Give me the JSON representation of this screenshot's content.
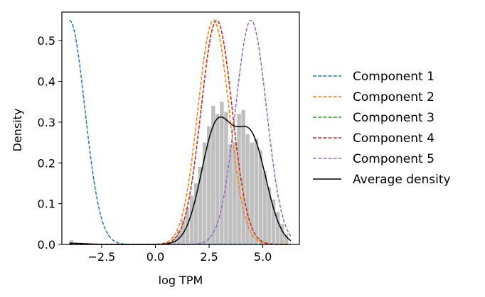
{
  "chart_data": {
    "type": "line",
    "xlabel": "log TPM",
    "ylabel": "Density",
    "xlim": [
      -4.35,
      6.7
    ],
    "ylim": [
      0,
      0.57
    ],
    "x_ticks": [
      {
        "value": -2.5,
        "label": "−2.5"
      },
      {
        "value": 0.0,
        "label": "0.0"
      },
      {
        "value": 2.5,
        "label": "2.5"
      },
      {
        "value": 5.0,
        "label": "5.0"
      }
    ],
    "y_ticks": [
      {
        "value": 0.0,
        "label": "0.0"
      },
      {
        "value": 0.1,
        "label": "0.1"
      },
      {
        "value": 0.2,
        "label": "0.2"
      },
      {
        "value": 0.3,
        "label": "0.3"
      },
      {
        "value": 0.4,
        "label": "0.4"
      },
      {
        "value": 0.5,
        "label": "0.5"
      }
    ],
    "grid": false,
    "legend_position": "right",
    "histogram": {
      "color": "#bfbfbf",
      "bin_width": 0.2,
      "bins": [
        {
          "x0": -4.0,
          "density": 0.01
        },
        {
          "x0": 0.6,
          "density": 0.005
        },
        {
          "x0": 0.8,
          "density": 0.02
        },
        {
          "x0": 1.0,
          "density": 0.035
        },
        {
          "x0": 1.2,
          "density": 0.06
        },
        {
          "x0": 1.4,
          "density": 0.09
        },
        {
          "x0": 1.6,
          "density": 0.12
        },
        {
          "x0": 1.8,
          "density": 0.15
        },
        {
          "x0": 2.0,
          "density": 0.19
        },
        {
          "x0": 2.2,
          "density": 0.25
        },
        {
          "x0": 2.4,
          "density": 0.29
        },
        {
          "x0": 2.6,
          "density": 0.34
        },
        {
          "x0": 2.8,
          "density": 0.32
        },
        {
          "x0": 3.0,
          "density": 0.35
        },
        {
          "x0": 3.2,
          "density": 0.325
        },
        {
          "x0": 3.4,
          "density": 0.245
        },
        {
          "x0": 3.6,
          "density": 0.25
        },
        {
          "x0": 3.8,
          "density": 0.32
        },
        {
          "x0": 4.0,
          "density": 0.33
        },
        {
          "x0": 4.2,
          "density": 0.27
        },
        {
          "x0": 4.4,
          "density": 0.25
        },
        {
          "x0": 4.6,
          "density": 0.26
        },
        {
          "x0": 4.8,
          "density": 0.23
        },
        {
          "x0": 5.0,
          "density": 0.18
        },
        {
          "x0": 5.2,
          "density": 0.14
        },
        {
          "x0": 5.4,
          "density": 0.11
        },
        {
          "x0": 5.6,
          "density": 0.08
        },
        {
          "x0": 5.8,
          "density": 0.05
        },
        {
          "x0": 6.0,
          "density": 0.025
        }
      ]
    },
    "series": [
      {
        "name": "Component 1",
        "color": "#1f77b4",
        "style": "dashed",
        "kind": "gaussian",
        "mean": -4.0,
        "sd": 0.72,
        "peak": 0.55
      },
      {
        "name": "Component 2",
        "color": "#ff7f0e",
        "style": "dashed",
        "kind": "gaussian",
        "mean": 2.7,
        "sd": 0.72,
        "peak": 0.55
      },
      {
        "name": "Component 3",
        "color": "#2ca02c",
        "style": "dashed",
        "kind": "gaussian",
        "mean": 2.85,
        "sd": 0.72,
        "peak": 0.55
      },
      {
        "name": "Component 4",
        "color": "#d62728",
        "style": "dashed",
        "kind": "gaussian",
        "mean": 2.85,
        "sd": 0.72,
        "peak": 0.55
      },
      {
        "name": "Component 5",
        "color": "#9467bd",
        "style": "dashed",
        "kind": "gaussian",
        "mean": 4.45,
        "sd": 0.72,
        "peak": 0.55
      },
      {
        "name": "Average density",
        "color": "#000000",
        "style": "solid",
        "kind": "mixture",
        "components": [
          {
            "mean": 2.85,
            "sd": 0.72,
            "peak": 0.285
          },
          {
            "mean": 4.45,
            "sd": 0.72,
            "peak": 0.255
          },
          {
            "mean": -4.0,
            "sd": 0.72,
            "peak": 0.003
          }
        ]
      }
    ]
  }
}
